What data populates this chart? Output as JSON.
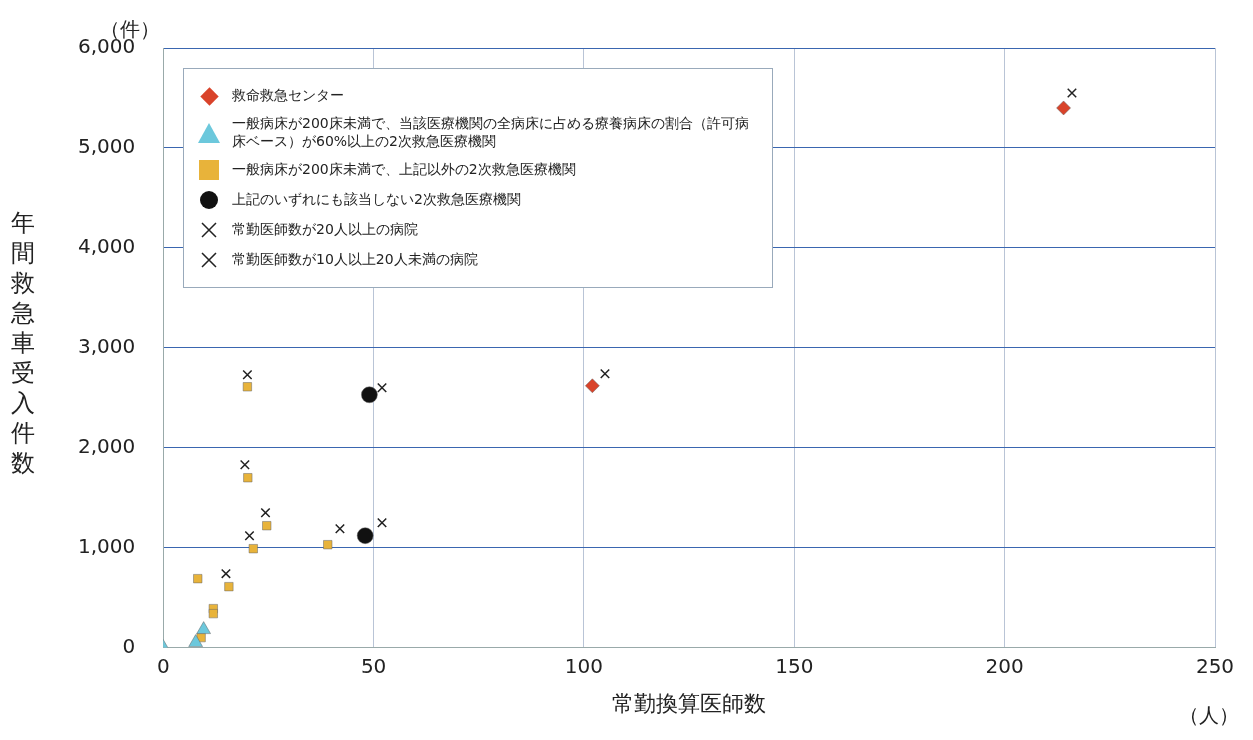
{
  "chart_data": {
    "type": "scatter",
    "xlabel": "常勤換算医師数",
    "ylabel": "年間救急車受入件数",
    "annotations": [
      "（件）",
      "（人）"
    ],
    "xlim": [
      0,
      250
    ],
    "xticks": [
      0,
      50,
      100,
      150,
      200,
      250
    ],
    "ylim": [
      0,
      6000
    ],
    "yticks": [
      0,
      {
        "value": 1000,
        "label": "1,000"
      },
      {
        "value": 2000,
        "label": "2,000"
      },
      {
        "value": 3000,
        "label": "3,000"
      },
      {
        "value": 4000,
        "label": "4,000"
      },
      {
        "value": 5000,
        "label": "5,000"
      },
      {
        "value": 6000,
        "label": "6,000"
      }
    ],
    "grid": true,
    "legend": "top left",
    "series": [
      {
        "name": "救命救急センター",
        "color": "#d9432a",
        "marker": "diamond",
        "x": [
          102,
          214
        ],
        "values": [
          2620,
          5400
        ]
      },
      {
        "name": "一般病床が200床未満で、当該医療機関の全病床に占める療養病床の割合（許可病床ベース）が60%以上の2次救急医療機関",
        "color": "#6cc8dc",
        "marker": "triangle",
        "x": [
          0,
          7.7,
          9.6
        ],
        "values": [
          0,
          50,
          180
        ]
      },
      {
        "name": "一般病床が200床未満で、上記以外の2次救急医療機関",
        "color": "#e8b33a",
        "marker": "square",
        "x": [
          20,
          20.1,
          24.6,
          21.4,
          39.1,
          8.2,
          15.6,
          11.9,
          11.9,
          9
        ],
        "values": [
          2610,
          1700,
          1220,
          990,
          1030,
          690,
          610,
          390,
          340,
          100
        ]
      },
      {
        "name": "上記のいずれにも該当しない2次救急医療機関",
        "color": "#111111",
        "marker": "circle",
        "x": [
          49,
          48
        ],
        "values": [
          2530,
          1120
        ]
      },
      {
        "name": "常勤医師数が20人以上の病院",
        "color": "#222222",
        "marker": "cross",
        "x": [
          216,
          105,
          52,
          52,
          42
        ],
        "values": [
          5550,
          2740,
          2600,
          1250,
          1190
        ]
      },
      {
        "name": "常勤医師数が10人以上20人未満の病院",
        "color": "#222222",
        "marker": "cross",
        "x": [
          20,
          19.4,
          24.3,
          20.5,
          14.9
        ],
        "values": [
          2730,
          1830,
          1350,
          1120,
          740
        ]
      }
    ]
  }
}
